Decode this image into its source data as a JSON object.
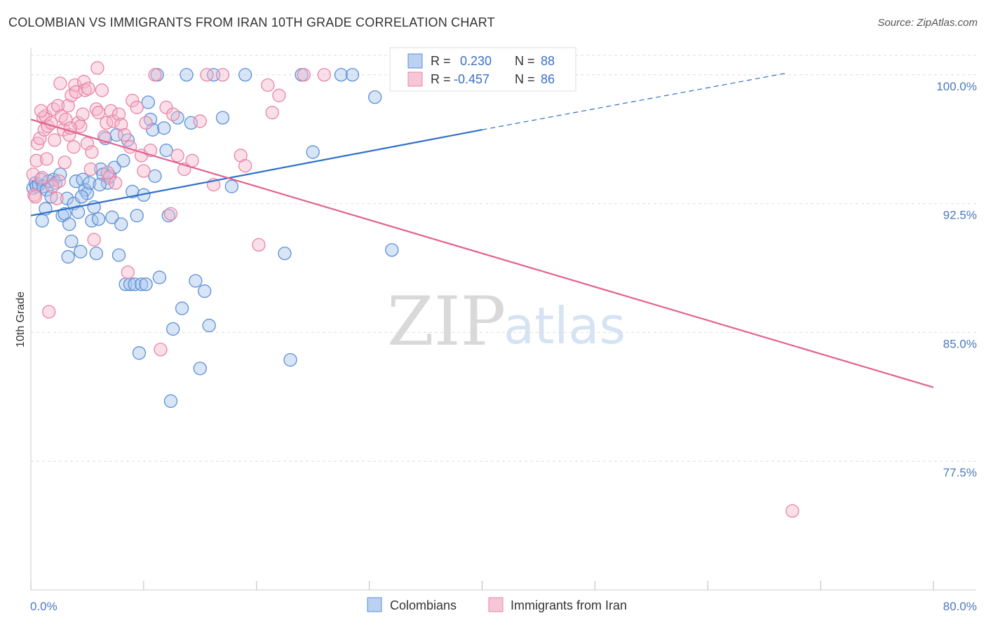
{
  "title": "COLOMBIAN VS IMMIGRANTS FROM IRAN 10TH GRADE CORRELATION CHART",
  "source": "Source: ZipAtlas.com",
  "watermark": {
    "zip": "ZIP",
    "atlas": "atlas"
  },
  "colors": {
    "blue_fill": "#a9c6ee",
    "blue_stroke": "#5b8fd6",
    "blue_line": "#2f6fc9",
    "pink_fill": "#f5b8cc",
    "pink_stroke": "#e884a6",
    "pink_line": "#e2618f",
    "grid": "#dddddd",
    "tick_text": "#4a78c2"
  },
  "chart_data": {
    "type": "scatter",
    "title": "COLOMBIAN VS IMMIGRANTS FROM IRAN 10TH GRADE CORRELATION CHART",
    "xlabel": "",
    "ylabel": "10th Grade",
    "xlim": [
      0,
      80
    ],
    "ylim": [
      70.0,
      101.5
    ],
    "x_tick_labels": {
      "min": "0.0%",
      "max": "80.0%"
    },
    "y_ticks": [
      {
        "value": 100.0,
        "label": "100.0%"
      },
      {
        "value": 92.5,
        "label": "92.5%"
      },
      {
        "value": 85.0,
        "label": "85.0%"
      },
      {
        "value": 77.5,
        "label": "77.5%"
      }
    ],
    "grid": "horizontal dashed",
    "legend_placement": "top-center",
    "stats": [
      {
        "r_label": "R =",
        "r_value": "0.230",
        "n_label": "N =",
        "n_value": "88"
      },
      {
        "r_label": "R =",
        "r_value": "-0.457",
        "n_label": "N =",
        "n_value": "86"
      }
    ],
    "series": [
      {
        "name": "Colombians",
        "color": "#a9c6ee",
        "trend": {
          "x1": 0,
          "y1": 91.8,
          "x2": 40,
          "y2": 96.8,
          "dash_x2": 67,
          "dash_y2": 100.1
        },
        "points": [
          [
            0.2,
            93.4
          ],
          [
            0.4,
            93.7
          ],
          [
            0.5,
            93.5
          ],
          [
            0.7,
            93.6
          ],
          [
            0.9,
            93.9
          ],
          [
            1.1,
            93.5
          ],
          [
            1.3,
            92.2
          ],
          [
            1.4,
            93.3
          ],
          [
            1.6,
            93.8
          ],
          [
            1.8,
            92.9
          ],
          [
            1.0,
            91.5
          ],
          [
            2.0,
            93.9
          ],
          [
            2.2,
            93.7
          ],
          [
            2.6,
            94.2
          ],
          [
            2.8,
            91.8
          ],
          [
            3.0,
            91.9
          ],
          [
            3.2,
            92.8
          ],
          [
            3.4,
            91.3
          ],
          [
            3.6,
            90.3
          ],
          [
            3.8,
            92.5
          ],
          [
            4.0,
            93.8
          ],
          [
            4.2,
            92.0
          ],
          [
            4.4,
            89.7
          ],
          [
            4.6,
            93.9
          ],
          [
            4.8,
            93.3
          ],
          [
            5.0,
            93.1
          ],
          [
            5.2,
            93.7
          ],
          [
            5.4,
            91.5
          ],
          [
            5.6,
            92.3
          ],
          [
            5.8,
            89.6
          ],
          [
            6.0,
            91.6
          ],
          [
            6.2,
            94.5
          ],
          [
            6.4,
            94.2
          ],
          [
            6.6,
            96.3
          ],
          [
            6.8,
            93.7
          ],
          [
            7.0,
            94.1
          ],
          [
            7.2,
            91.7
          ],
          [
            7.4,
            94.6
          ],
          [
            7.6,
            96.5
          ],
          [
            7.8,
            89.5
          ],
          [
            8.0,
            91.3
          ],
          [
            8.2,
            95.0
          ],
          [
            8.4,
            87.8
          ],
          [
            8.6,
            96.2
          ],
          [
            8.8,
            87.8
          ],
          [
            9.0,
            93.2
          ],
          [
            9.2,
            87.8
          ],
          [
            9.4,
            91.8
          ],
          [
            9.6,
            83.8
          ],
          [
            9.8,
            87.8
          ],
          [
            10.0,
            93.0
          ],
          [
            10.2,
            87.8
          ],
          [
            10.4,
            98.4
          ],
          [
            10.6,
            97.4
          ],
          [
            10.8,
            96.8
          ],
          [
            11.0,
            94.1
          ],
          [
            11.2,
            100.0
          ],
          [
            11.4,
            88.2
          ],
          [
            11.8,
            96.9
          ],
          [
            12.0,
            95.6
          ],
          [
            12.2,
            91.8
          ],
          [
            12.6,
            85.2
          ],
          [
            13.0,
            97.5
          ],
          [
            13.4,
            86.4
          ],
          [
            13.8,
            100.0
          ],
          [
            14.2,
            97.2
          ],
          [
            14.6,
            88.0
          ],
          [
            15.0,
            82.9
          ],
          [
            15.4,
            87.4
          ],
          [
            15.8,
            85.4
          ],
          [
            16.2,
            100.0
          ],
          [
            17.0,
            97.5
          ],
          [
            17.8,
            93.5
          ],
          [
            19.0,
            100.0
          ],
          [
            22.5,
            89.6
          ],
          [
            23.0,
            83.4
          ],
          [
            24.0,
            100.0
          ],
          [
            25.0,
            95.5
          ],
          [
            27.5,
            100.0
          ],
          [
            28.5,
            100.0
          ],
          [
            30.5,
            98.7
          ],
          [
            32.0,
            89.8
          ],
          [
            33.0,
            100.0
          ],
          [
            39.5,
            100.0
          ],
          [
            12.4,
            81.0
          ],
          [
            3.3,
            89.4
          ],
          [
            6.1,
            93.6
          ],
          [
            4.5,
            92.9
          ]
        ]
      },
      {
        "name": "Immigrants from Iran",
        "color": "#f5b8cc",
        "trend": {
          "x1": 0,
          "y1": 97.4,
          "x2": 80,
          "y2": 81.8
        },
        "points": [
          [
            0.2,
            94.2
          ],
          [
            0.3,
            93.0
          ],
          [
            0.5,
            95.0
          ],
          [
            0.6,
            96.0
          ],
          [
            0.8,
            96.3
          ],
          [
            1.0,
            94.0
          ],
          [
            1.1,
            97.5
          ],
          [
            1.2,
            96.8
          ],
          [
            1.3,
            97.6
          ],
          [
            1.5,
            97.0
          ],
          [
            1.6,
            86.2
          ],
          [
            1.8,
            97.2
          ],
          [
            2.0,
            98.0
          ],
          [
            2.1,
            96.2
          ],
          [
            2.3,
            92.8
          ],
          [
            2.4,
            98.2
          ],
          [
            2.5,
            93.8
          ],
          [
            2.7,
            97.6
          ],
          [
            2.9,
            96.8
          ],
          [
            3.0,
            94.9
          ],
          [
            3.1,
            97.4
          ],
          [
            3.3,
            98.2
          ],
          [
            3.4,
            96.5
          ],
          [
            3.6,
            98.8
          ],
          [
            3.8,
            95.8
          ],
          [
            3.9,
            99.4
          ],
          [
            4.0,
            99.0
          ],
          [
            4.2,
            97.2
          ],
          [
            4.4,
            97.0
          ],
          [
            4.6,
            97.7
          ],
          [
            4.7,
            99.6
          ],
          [
            4.8,
            99.1
          ],
          [
            5.0,
            96.0
          ],
          [
            5.1,
            99.2
          ],
          [
            5.3,
            94.5
          ],
          [
            5.4,
            95.5
          ],
          [
            5.6,
            90.4
          ],
          [
            5.8,
            98.0
          ],
          [
            6.0,
            97.8
          ],
          [
            6.3,
            99.1
          ],
          [
            6.5,
            96.4
          ],
          [
            6.7,
            97.2
          ],
          [
            6.9,
            94.0
          ],
          [
            7.1,
            97.9
          ],
          [
            7.3,
            97.3
          ],
          [
            7.5,
            93.7
          ],
          [
            7.8,
            97.7
          ],
          [
            8.0,
            97.1
          ],
          [
            8.3,
            96.5
          ],
          [
            8.6,
            88.5
          ],
          [
            9.0,
            98.5
          ],
          [
            9.4,
            98.1
          ],
          [
            9.8,
            95.3
          ],
          [
            10.2,
            97.2
          ],
          [
            10.6,
            95.6
          ],
          [
            11.0,
            100.0
          ],
          [
            11.5,
            84.0
          ],
          [
            12.0,
            98.1
          ],
          [
            12.6,
            97.7
          ],
          [
            13.0,
            95.3
          ],
          [
            13.6,
            94.5
          ],
          [
            14.3,
            95.0
          ],
          [
            15.0,
            97.3
          ],
          [
            15.6,
            100.0
          ],
          [
            16.2,
            93.6
          ],
          [
            17.0,
            100.0
          ],
          [
            18.6,
            95.3
          ],
          [
            19.0,
            94.7
          ],
          [
            20.2,
            90.1
          ],
          [
            21.0,
            99.4
          ],
          [
            21.4,
            97.8
          ],
          [
            22.0,
            98.8
          ],
          [
            24.2,
            100.0
          ],
          [
            26.0,
            100.0
          ],
          [
            12.4,
            91.9
          ],
          [
            67.5,
            74.6
          ],
          [
            0.4,
            92.9
          ],
          [
            1.9,
            93.5
          ],
          [
            2.6,
            99.5
          ],
          [
            5.9,
            100.4
          ],
          [
            6.8,
            94.3
          ],
          [
            8.8,
            95.8
          ],
          [
            10.0,
            94.4
          ],
          [
            3.5,
            96.9
          ],
          [
            1.4,
            95.1
          ],
          [
            0.9,
            97.9
          ]
        ]
      }
    ]
  }
}
